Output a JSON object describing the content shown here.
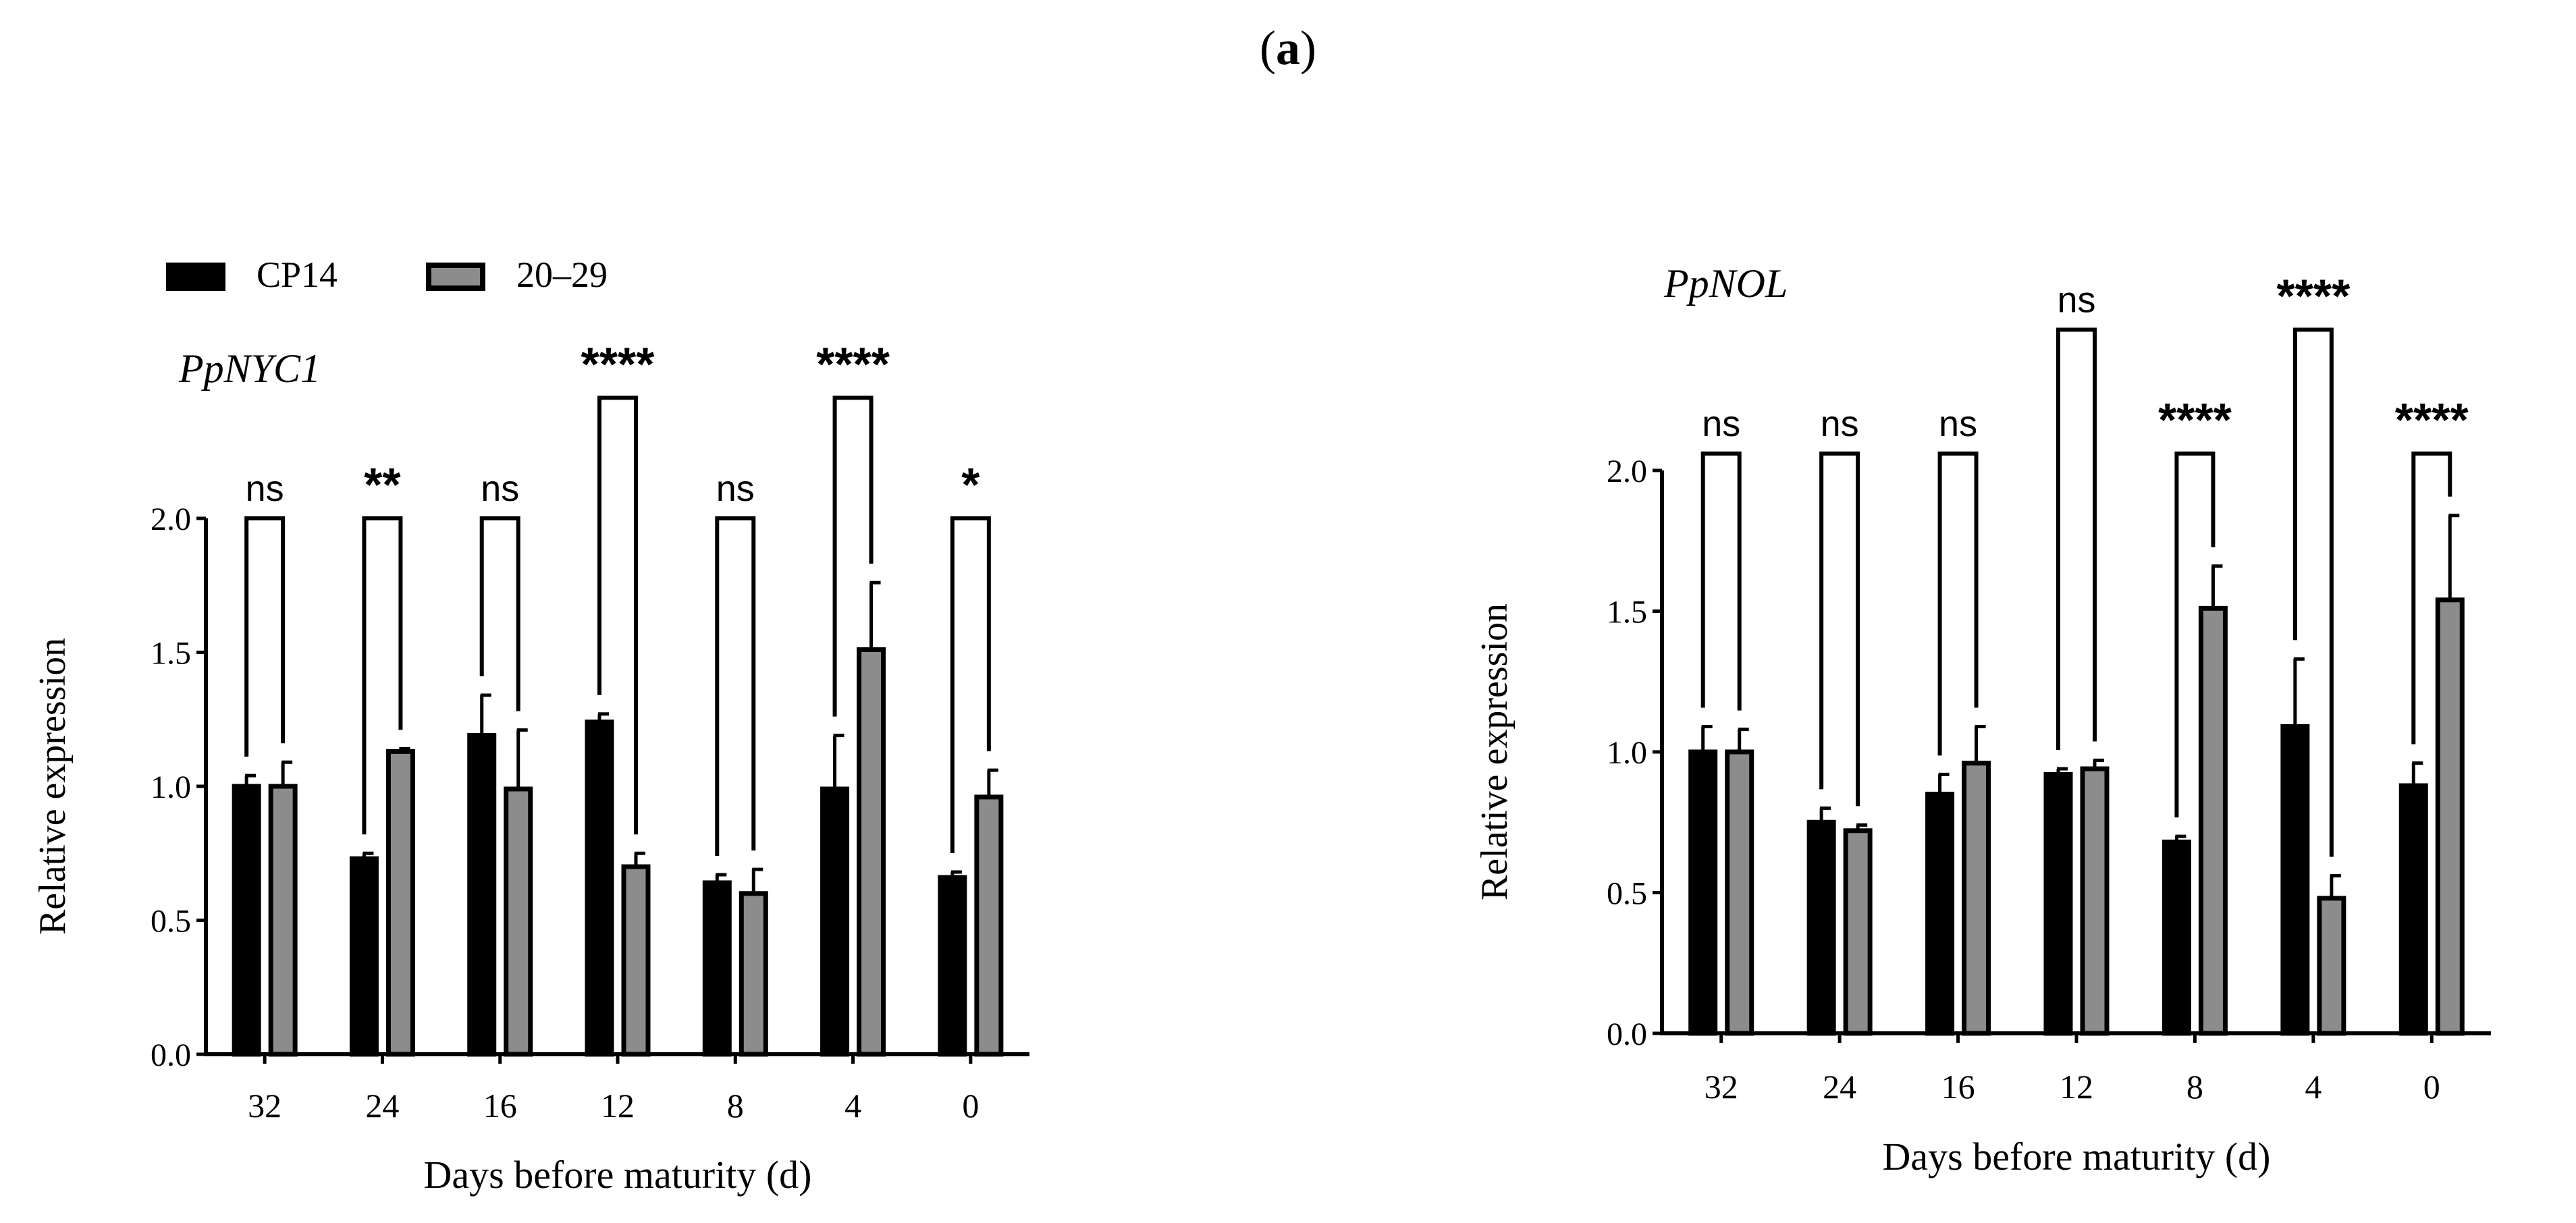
{
  "figure": {
    "panel_label_open": "(",
    "panel_label_letter": "a",
    "panel_label_close": ")"
  },
  "legend": [
    {
      "name": "CP14",
      "color": "#000000"
    },
    {
      "name": "20–29",
      "color": "#8c8c8c"
    }
  ],
  "chart_data": [
    {
      "type": "bar",
      "title": "PpNYC1",
      "xlabel": "Days before maturity (d)",
      "ylabel": "Relative expression",
      "ylim": [
        0,
        2.0
      ],
      "yticks": [
        "0.0",
        "0.5",
        "1.0",
        "1.5",
        "2.0"
      ],
      "categories": [
        "32",
        "24",
        "16",
        "12",
        "8",
        "4",
        "0"
      ],
      "series": [
        {
          "name": "CP14",
          "values": [
            1.0,
            0.73,
            1.19,
            1.24,
            0.64,
            0.99,
            0.66
          ],
          "errors": [
            0.04,
            0.02,
            0.15,
            0.03,
            0.03,
            0.2,
            0.02
          ]
        },
        {
          "name": "20–29",
          "values": [
            1.0,
            1.13,
            0.99,
            0.7,
            0.6,
            1.51,
            0.96
          ],
          "errors": [
            0.09,
            0.01,
            0.22,
            0.05,
            0.09,
            0.25,
            0.1
          ]
        }
      ],
      "significance": [
        {
          "label": "ns",
          "y": 2.0
        },
        {
          "label": "**",
          "y": 2.0
        },
        {
          "label": "ns",
          "y": 2.0
        },
        {
          "label": "****",
          "y": 2.45
        },
        {
          "label": "ns",
          "y": 2.0
        },
        {
          "label": "****",
          "y": 2.45
        },
        {
          "label": "*",
          "y": 2.0
        }
      ]
    },
    {
      "type": "bar",
      "title": "PpNOL",
      "xlabel": "Days before maturity (d)",
      "ylabel": "Relative expression",
      "ylim": [
        0,
        2.0
      ],
      "yticks": [
        "0.0",
        "0.5",
        "1.0",
        "1.5",
        "2.0"
      ],
      "categories": [
        "32",
        "24",
        "16",
        "12",
        "8",
        "4",
        "0"
      ],
      "series": [
        {
          "name": "CP14",
          "values": [
            1.0,
            0.75,
            0.85,
            0.92,
            0.68,
            1.09,
            0.88
          ],
          "errors": [
            0.09,
            0.05,
            0.07,
            0.02,
            0.02,
            0.24,
            0.08
          ]
        },
        {
          "name": "20–29",
          "values": [
            1.0,
            0.72,
            0.96,
            0.94,
            1.51,
            0.48,
            1.54
          ],
          "errors": [
            0.08,
            0.02,
            0.13,
            0.03,
            0.15,
            0.08,
            0.3
          ]
        }
      ],
      "significance": [
        {
          "label": "ns",
          "y": 2.06
        },
        {
          "label": "ns",
          "y": 2.06
        },
        {
          "label": "ns",
          "y": 2.06
        },
        {
          "label": "ns",
          "y": 2.5
        },
        {
          "label": "****",
          "y": 2.06
        },
        {
          "label": "****",
          "y": 2.5
        },
        {
          "label": "****",
          "y": 2.06
        }
      ]
    }
  ]
}
